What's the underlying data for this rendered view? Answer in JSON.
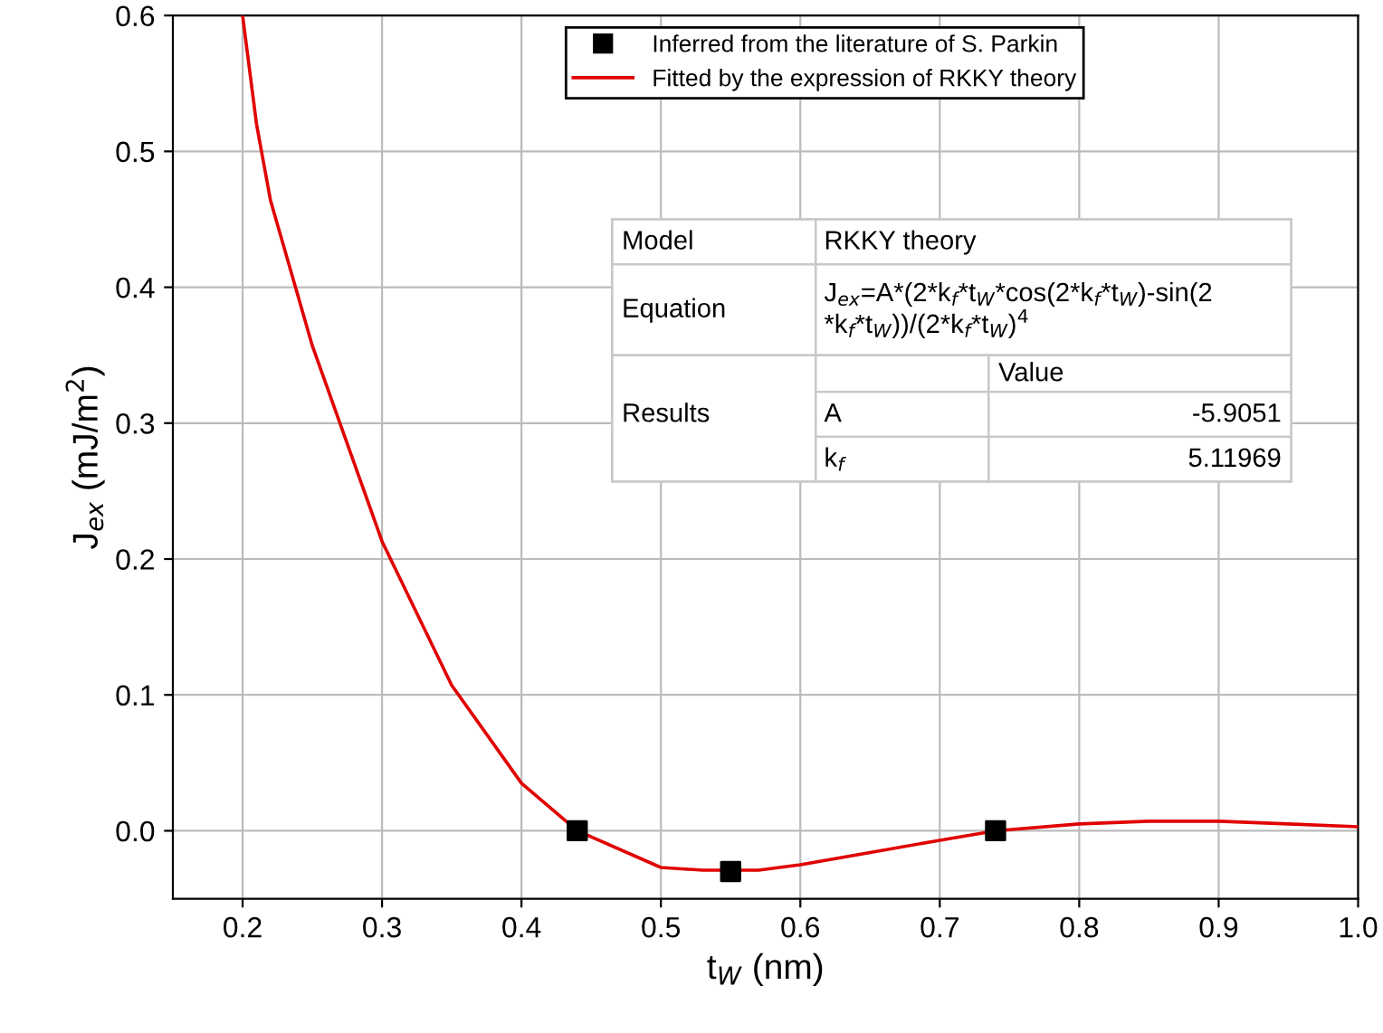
{
  "chart_data": {
    "type": "scatter",
    "xlabel": "t$_{W}$ (nm)",
    "ylabel": "J$_{ex}$ (mJ/m$^{2}$)",
    "xlim": [
      0.15,
      1.0
    ],
    "ylim": [
      -0.05,
      0.6
    ],
    "xticks": [
      0.2,
      0.3,
      0.4,
      0.5,
      0.6,
      0.7,
      0.8,
      0.9,
      {
        "value": 1.0,
        "label": "1.0"
      }
    ],
    "yticks": [
      {
        "value": 0.0,
        "label": "0.0"
      },
      0.1,
      0.2,
      0.3,
      0.4,
      0.5,
      0.6
    ],
    "grid": true,
    "legend": "top",
    "series": [
      {
        "name": "Inferred from the literature of S. Parkin",
        "type": "scatter",
        "marker": "square",
        "color": "#000000",
        "x": [
          0.44,
          0.55,
          0.74
        ],
        "values": [
          0.0,
          -0.03,
          0.0
        ]
      },
      {
        "name": "Fitted by the expression of RKKY theory",
        "type": "line",
        "marker": "none",
        "line_style": "solid",
        "color": "#e00000",
        "x": [
          0.2,
          0.21,
          0.22,
          0.25,
          0.3,
          0.35,
          0.4,
          0.44,
          0.5,
          0.53,
          0.57,
          0.6,
          0.65,
          0.7,
          0.74,
          0.8,
          0.85,
          0.9,
          0.95,
          1.0
        ],
        "values": [
          0.6,
          0.52,
          0.464,
          0.357,
          0.213,
          0.107,
          0.035,
          0.0,
          -0.027,
          -0.029,
          -0.029,
          -0.025,
          -0.016,
          -0.007,
          0.0,
          0.005,
          0.007,
          0.007,
          0.005,
          0.003
        ]
      }
    ],
    "annotations": [
      "Model",
      "RKKY theory",
      "Equation",
      "J$_{ex}$=A*(2*k$_{f}$*t$_{W}$*cos(2*k$_{f}$*t$_{W}$)-sin(2\n*k$_{f}$*t$_{W}$))/(2*k$_{f}$*t$_{W}$)$^{4}$",
      "Value",
      "Results",
      "A",
      "-5.9051",
      "k$_{f}$",
      "5.11969"
    ]
  }
}
